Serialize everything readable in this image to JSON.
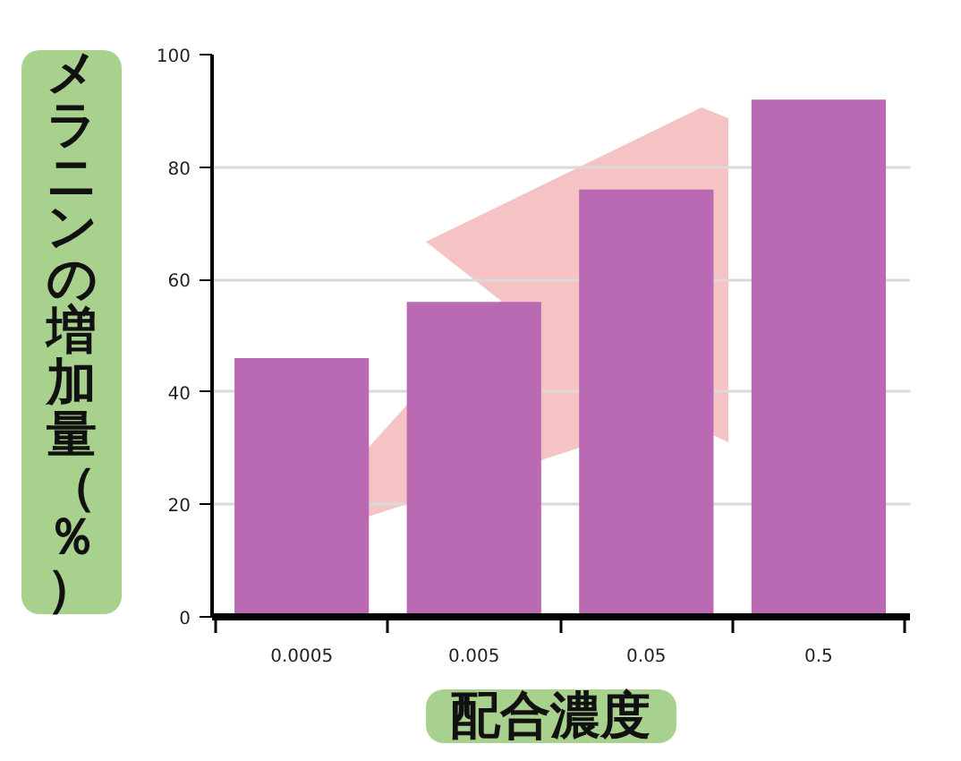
{
  "chart_data": {
    "type": "bar",
    "categories": [
      "0.0005",
      "0.005",
      "0.05",
      "0.5"
    ],
    "values": [
      46,
      56,
      76,
      92
    ],
    "color": "#b96ab3",
    "ylim": [
      0,
      100
    ],
    "yticks": [
      0,
      20,
      40,
      60,
      80,
      100
    ],
    "grid": "y",
    "xlabel": "配合濃度",
    "ylabel": "メラニンの増加量（％）"
  }
}
